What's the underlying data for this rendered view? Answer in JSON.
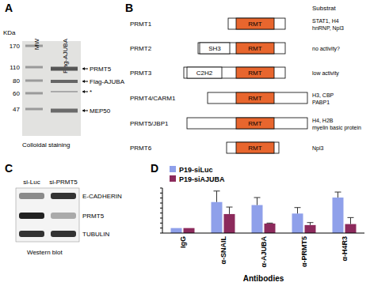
{
  "panel_labels": [
    "A",
    "B",
    "C",
    "D"
  ],
  "panel_a": {
    "axis_title": "KDa",
    "markers": [
      170,
      110,
      80,
      60,
      47
    ],
    "lanes": [
      "MW",
      "Flag-AJUBA"
    ],
    "bands": [
      "PRMT5",
      "Flag-AJUBA",
      "*",
      "MEP50"
    ],
    "caption": "Colloidal staining"
  },
  "panel_b": {
    "header": "Substrat",
    "rows": [
      {
        "name": "PRMT1",
        "domains": [
          "RMT"
        ],
        "substrate": [
          "STAT1, H4",
          "hnRNP, Npl3"
        ]
      },
      {
        "name": "PRMT2",
        "domains": [
          "SH3",
          "RMT"
        ],
        "substrate": [
          "no activity?"
        ]
      },
      {
        "name": "PRMT3",
        "domains": [
          "C2H2",
          "RMT"
        ],
        "substrate": [
          "low activity"
        ]
      },
      {
        "name": "PRMT4/CARM1",
        "domains": [
          "RMT"
        ],
        "substrate": [
          "H3, CBP",
          "PABP1"
        ]
      },
      {
        "name": "PRMT5/JBP1",
        "domains": [
          "RMT"
        ],
        "substrate": [
          "H4, H2B",
          "myelin basic protein"
        ]
      },
      {
        "name": "PRMT6",
        "domains": [
          "RMT"
        ],
        "substrate": [
          "Npl3"
        ]
      }
    ]
  },
  "panel_c": {
    "lanes": [
      "si-Luc",
      "si-PRMT5"
    ],
    "rows": [
      "E-CADHERIN",
      "PRMT5",
      "TUBULIN"
    ],
    "caption": "Western blot"
  },
  "chart_data": {
    "type": "bar",
    "x_label": "Antibodies",
    "categories": [
      "IgG",
      "α-SNAIL",
      "α-AJUBA",
      "α-PRMT5",
      "α-H4R3"
    ],
    "series": [
      {
        "name": "P19-siLuc",
        "color": "#8fa0ea",
        "values": [
          1.0,
          6.2,
          5.6,
          3.9,
          7.1
        ],
        "errors": [
          0,
          2.2,
          1.5,
          1.2,
          1.1
        ]
      },
      {
        "name": "P19-siAJUBA",
        "color": "#8c2a5c",
        "values": [
          1.0,
          3.8,
          1.9,
          1.6,
          1.8
        ],
        "errors": [
          0,
          1.4,
          0.1,
          0.5,
          1.3
        ]
      }
    ],
    "ylim": [
      0,
      9
    ],
    "yticks": [
      0,
      1,
      2,
      3,
      4,
      5,
      6,
      7,
      8,
      9
    ],
    "tick_labels": "x",
    "grid": false,
    "legend": "top-left"
  }
}
